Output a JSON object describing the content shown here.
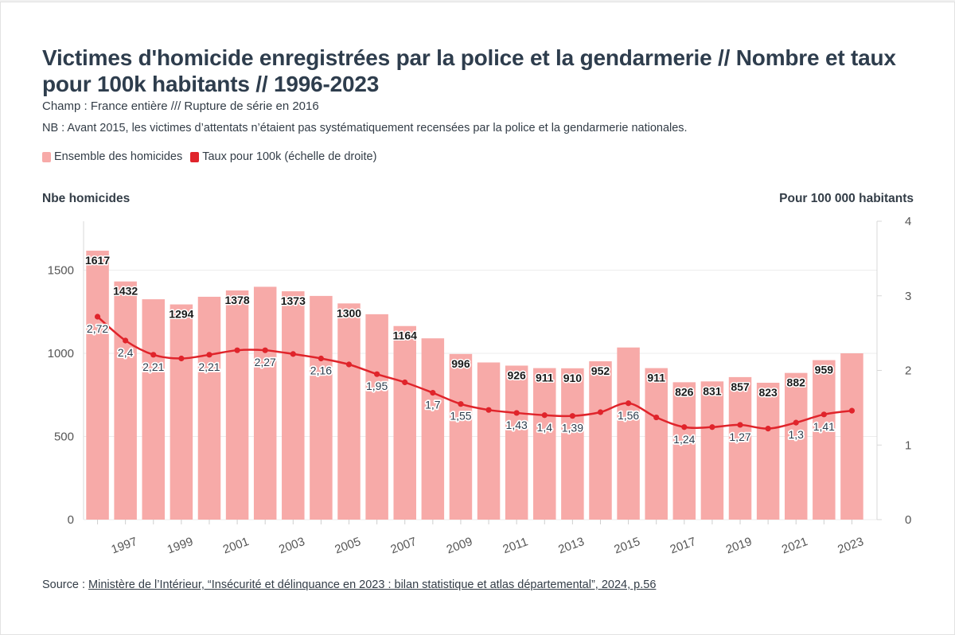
{
  "title": "Victimes d'homicide enregistrées par la police et la gendarmerie // Nombre et taux pour 100k habitants // 1996-2023",
  "subtitle": "Champ : France entière /// Rupture de série en 2016",
  "note": "NB : Avant 2015, les victimes d’attentats n’étaient pas systématiquement recensées par la police et la gendarmerie nationales.",
  "legend": [
    {
      "label": "Ensemble des homicides",
      "color": "#f7aaa8"
    },
    {
      "label": "Taux pour 100k (échelle de droite)",
      "color": "#e0242b"
    }
  ],
  "source": {
    "prefix": "Source : ",
    "link_text": "Ministère de l’Intérieur, “Insécurité et délinquance en 2023 : bilan statistique et atlas départemental”, 2024, p.56"
  },
  "chart_data": {
    "type": "bar",
    "ylabel_left": "Nbe homicides",
    "ylabel_right": "Pour 100 000 habitants",
    "ylim_left": [
      0,
      1800
    ],
    "yticks_left": [
      0,
      500,
      1000,
      1500
    ],
    "ylim_right": [
      0,
      4
    ],
    "yticks_right": [
      0,
      1,
      2,
      3,
      4
    ],
    "grid": true,
    "x": [
      1996,
      1997,
      1998,
      1999,
      2000,
      2001,
      2002,
      2003,
      2004,
      2005,
      2006,
      2007,
      2008,
      2009,
      2010,
      2011,
      2012,
      2013,
      2014,
      2015,
      2016,
      2017,
      2018,
      2019,
      2020,
      2021,
      2022,
      2023
    ],
    "xtick_labels": [
      "1997",
      "1999",
      "2001",
      "2003",
      "2005",
      "2007",
      "2009",
      "2011",
      "2013",
      "2015",
      "2017",
      "2019",
      "2021",
      "2023"
    ],
    "series": [
      {
        "name": "Ensemble des homicides",
        "type": "bar",
        "color": "#f7aaa8",
        "values": [
          1617,
          1432,
          1325,
          1294,
          1340,
          1378,
          1400,
          1373,
          1345,
          1300,
          1235,
          1164,
          1090,
          996,
          945,
          926,
          911,
          910,
          952,
          1035,
          911,
          826,
          831,
          857,
          823,
          882,
          959,
          1000
        ],
        "labels": [
          "1617",
          "1432",
          "",
          "1294",
          "",
          "1378",
          "",
          "1373",
          "",
          "1300",
          "",
          "1164",
          "",
          "996",
          "",
          "926",
          "911",
          "910",
          "952",
          "",
          "911",
          "826",
          "831",
          "857",
          "823",
          "882",
          "959",
          ""
        ]
      },
      {
        "name": "Taux pour 100k (échelle de droite)",
        "type": "line",
        "axis": "right",
        "color": "#e0242b",
        "values": [
          2.72,
          2.4,
          2.21,
          2.16,
          2.21,
          2.27,
          2.27,
          2.22,
          2.16,
          2.08,
          1.95,
          1.84,
          1.7,
          1.55,
          1.47,
          1.43,
          1.4,
          1.39,
          1.44,
          1.56,
          1.37,
          1.24,
          1.24,
          1.27,
          1.22,
          1.3,
          1.41,
          1.46
        ],
        "labels": [
          "2,72",
          "2,4",
          "2,21",
          "",
          "2,21",
          "",
          "2,27",
          "",
          "2,16",
          "",
          "1,95",
          "",
          "1,7",
          "1,55",
          "",
          "1,43",
          "1,4",
          "1,39",
          "",
          "1,56",
          "",
          "1,24",
          "",
          "1,27",
          "",
          "1,3",
          "1,41",
          ""
        ]
      }
    ]
  }
}
